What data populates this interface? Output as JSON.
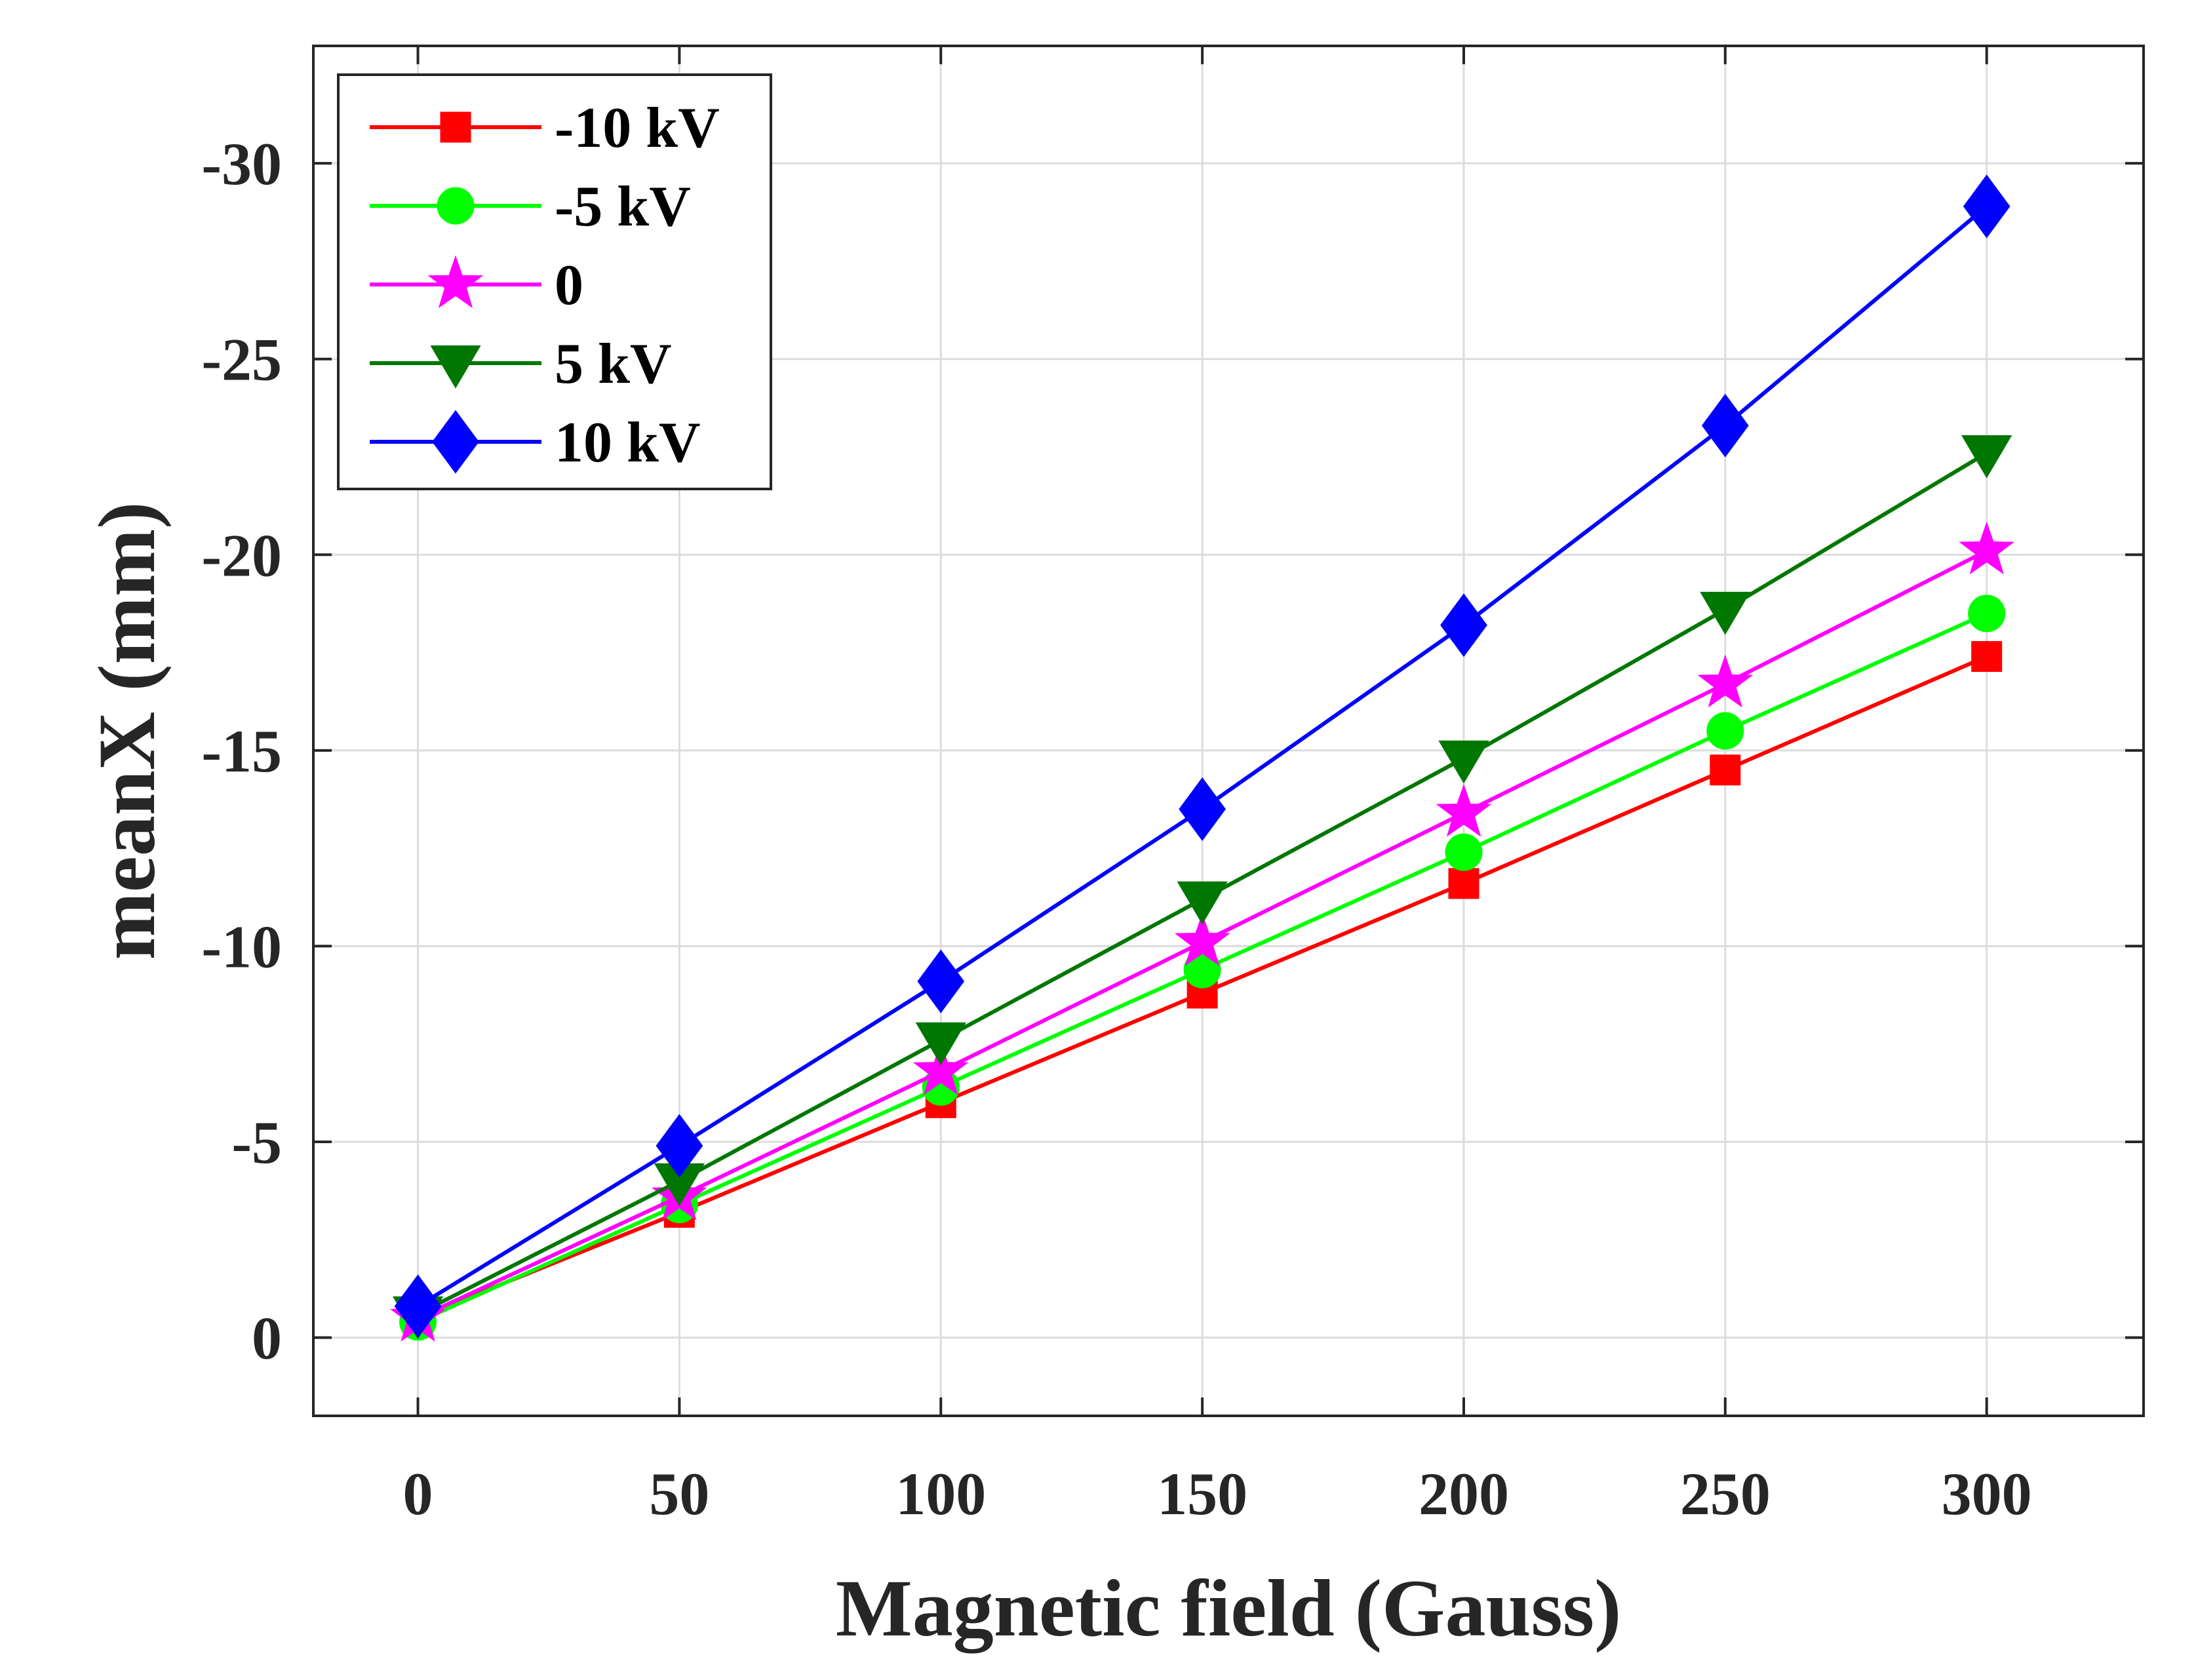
{
  "chart_data": {
    "type": "line",
    "title": "",
    "xlabel": "Magnetic field (Gauss)",
    "ylabel": "meanX (mm)",
    "x": [
      0,
      50,
      100,
      150,
      200,
      250,
      300
    ],
    "xlim": [
      -20,
      330
    ],
    "ylim": [
      2,
      -33
    ],
    "y_axis_reversed": true,
    "xticks": [
      0,
      50,
      100,
      150,
      200,
      250,
      300
    ],
    "xtick_labels": [
      "0",
      "50",
      "100",
      "150",
      "200",
      "250",
      "300"
    ],
    "yticks": [
      0,
      -5,
      -10,
      -15,
      -20,
      -25,
      -30
    ],
    "ytick_labels": [
      "0",
      "-5",
      "-10",
      "-15",
      "-20",
      "-25",
      "-30"
    ],
    "grid": true,
    "legend_position": "top-left",
    "series": [
      {
        "name": "-10 kV",
        "color": "#ff0000",
        "marker": "square",
        "values": [
          -0.5,
          -3.2,
          -6.0,
          -8.8,
          -11.6,
          -14.5,
          -17.4
        ]
      },
      {
        "name": "-5 kV",
        "color": "#00ff00",
        "marker": "circle",
        "values": [
          -0.4,
          -3.4,
          -6.4,
          -9.4,
          -12.4,
          -15.5,
          -18.5
        ]
      },
      {
        "name": "0",
        "color": "#ff00ff",
        "marker": "star",
        "values": [
          -0.5,
          -3.6,
          -6.8,
          -10.1,
          -13.4,
          -16.7,
          -20.1
        ]
      },
      {
        "name": "5 kV",
        "color": "#007700",
        "marker": "triangle-down",
        "values": [
          -0.6,
          -4.0,
          -7.6,
          -11.2,
          -14.8,
          -18.6,
          -22.6
        ]
      },
      {
        "name": "10 kV",
        "color": "#0000ff",
        "marker": "diamond",
        "values": [
          -0.8,
          -4.9,
          -9.1,
          -13.5,
          -18.2,
          -23.3,
          -28.9
        ]
      }
    ]
  }
}
